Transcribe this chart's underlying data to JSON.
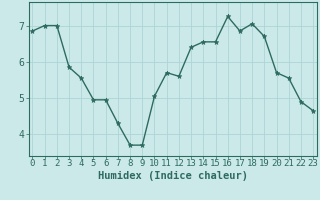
{
  "x": [
    0,
    1,
    2,
    3,
    4,
    5,
    6,
    7,
    8,
    9,
    10,
    11,
    12,
    13,
    14,
    15,
    16,
    17,
    18,
    19,
    20,
    21,
    22,
    23
  ],
  "y": [
    6.85,
    7.0,
    7.0,
    5.85,
    5.55,
    4.95,
    4.95,
    4.3,
    3.7,
    3.7,
    5.05,
    5.7,
    5.6,
    6.4,
    6.55,
    6.55,
    7.25,
    6.85,
    7.05,
    6.7,
    5.7,
    5.55,
    4.9,
    4.65
  ],
  "line_color": "#2d6b5e",
  "marker": "*",
  "marker_size": 3.5,
  "bg_color": "#cce9ea",
  "grid_color": "#aed4d5",
  "axis_color": "#2d6b5e",
  "xlabel": "Humidex (Indice chaleur)",
  "xlabel_fontsize": 7.5,
  "yticks": [
    4,
    5,
    6,
    7
  ],
  "xticks": [
    0,
    1,
    2,
    3,
    4,
    5,
    6,
    7,
    8,
    9,
    10,
    11,
    12,
    13,
    14,
    15,
    16,
    17,
    18,
    19,
    20,
    21,
    22,
    23
  ],
  "xlim": [
    -0.3,
    23.3
  ],
  "ylim": [
    3.4,
    7.65
  ],
  "tick_fontsize": 6.5,
  "line_width": 1.0
}
